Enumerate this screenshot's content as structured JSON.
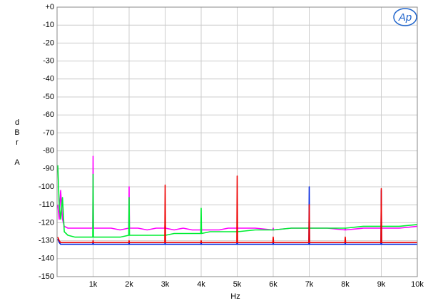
{
  "chart_data": {
    "type": "line",
    "logo": "Ap",
    "xlabel": "Hz",
    "ylabel": [
      "d",
      "B",
      "r"
    ],
    "ylabel_unit": "A",
    "xlim": [
      0,
      10000
    ],
    "ylim": [
      -150,
      0
    ],
    "xticks": [
      {
        "value": 1000,
        "label": "1k"
      },
      {
        "value": 2000,
        "label": "2k"
      },
      {
        "value": 3000,
        "label": "3k"
      },
      {
        "value": 4000,
        "label": "4k"
      },
      {
        "value": 5000,
        "label": "5k"
      },
      {
        "value": 6000,
        "label": "6k"
      },
      {
        "value": 7000,
        "label": "7k"
      },
      {
        "value": 8000,
        "label": "8k"
      },
      {
        "value": 9000,
        "label": "9k"
      },
      {
        "value": 10000,
        "label": "10k"
      }
    ],
    "yticks": [
      -150,
      -140,
      -130,
      -120,
      -110,
      -100,
      -90,
      -80,
      -70,
      -60,
      -50,
      -40,
      -30,
      -20,
      -10,
      {
        "value": 0,
        "label": "+0"
      }
    ],
    "grid": true,
    "x": [
      20,
      60,
      100,
      150,
      200,
      300,
      500,
      750,
      990,
      1000,
      1010,
      1250,
      1500,
      1750,
      1990,
      2000,
      2010,
      2250,
      2500,
      2750,
      2990,
      3000,
      3010,
      3250,
      3500,
      3750,
      3990,
      4000,
      4010,
      4250,
      4500,
      4750,
      4990,
      5000,
      5010,
      5500,
      5990,
      6000,
      6010,
      6500,
      6990,
      7000,
      7010,
      7500,
      7990,
      8000,
      8010,
      8500,
      8990,
      9000,
      9010,
      9500,
      10000
    ],
    "series": [
      {
        "color": "#ff00ff",
        "values": [
          -110,
          -118,
          -102,
          -118,
          -122,
          -123,
          -123,
          -123,
          -123,
          -83,
          -123,
          -123,
          -123,
          -124,
          -123,
          -100,
          -123,
          -123,
          -124,
          -123,
          -123,
          -120,
          -123,
          -124,
          -123,
          -124,
          -124,
          -122,
          -124,
          -124,
          -124,
          -123,
          -123,
          -122,
          -123,
          -123,
          -124,
          -123,
          -124,
          -123,
          -123,
          -122,
          -123,
          -123,
          -124,
          -123,
          -124,
          -123,
          -123,
          -122,
          -123,
          -123,
          -122
        ]
      },
      {
        "color": "#00ee33",
        "values": [
          -88,
          -110,
          -118,
          -106,
          -125,
          -127,
          -128,
          -128,
          -128,
          -93,
          -128,
          -128,
          -128,
          -128,
          -127,
          -106,
          -127,
          -127,
          -127,
          -127,
          -127,
          -126,
          -127,
          -126,
          -126,
          -126,
          -126,
          -112,
          -126,
          -125,
          -125,
          -125,
          -125,
          -124,
          -125,
          -124,
          -124,
          -124,
          -124,
          -123,
          -123,
          -122,
          -123,
          -123,
          -123,
          -123,
          -123,
          -122,
          -122,
          -121,
          -122,
          -122,
          -121
        ]
      },
      {
        "color": "#0022dd",
        "values": [
          -129,
          -131,
          -132,
          -132,
          -132,
          -132,
          -132,
          -132,
          -132,
          -130,
          -132,
          -132,
          -132,
          -132,
          -132,
          -131,
          -132,
          -132,
          -132,
          -132,
          -132,
          -131,
          -132,
          -132,
          -132,
          -132,
          -132,
          -131,
          -132,
          -132,
          -132,
          -132,
          -132,
          -130,
          -132,
          -132,
          -132,
          -131,
          -132,
          -132,
          -132,
          -100,
          -132,
          -132,
          -132,
          -131,
          -132,
          -132,
          -132,
          -102,
          -132,
          -132,
          -132
        ]
      },
      {
        "color": "#ee0000",
        "values": [
          -128,
          -130,
          -131,
          -131,
          -131,
          -131,
          -131,
          -131,
          -131,
          -130,
          -131,
          -131,
          -131,
          -131,
          -131,
          -130,
          -131,
          -131,
          -131,
          -131,
          -131,
          -99,
          -131,
          -131,
          -131,
          -131,
          -131,
          -130,
          -131,
          -131,
          -131,
          -131,
          -131,
          -94,
          -131,
          -131,
          -131,
          -128,
          -131,
          -131,
          -131,
          -110,
          -131,
          -131,
          -131,
          -128,
          -131,
          -131,
          -131,
          -101,
          -131,
          -131,
          -131
        ]
      }
    ]
  }
}
